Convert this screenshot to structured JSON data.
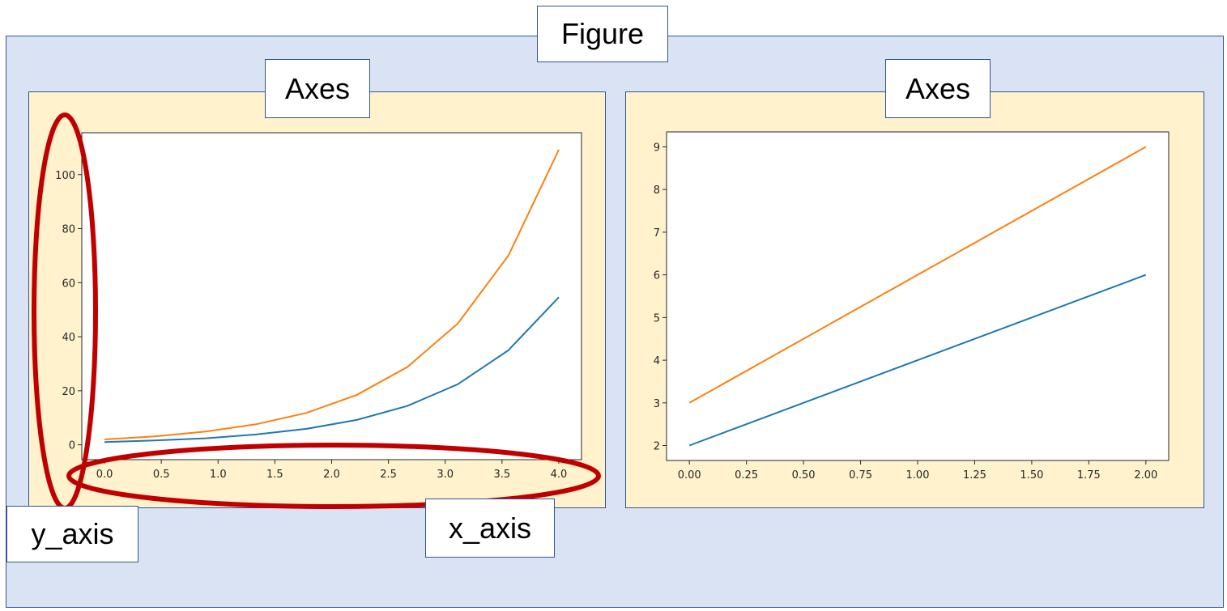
{
  "labels": {
    "figure": "Figure",
    "axes_left": "Axes",
    "axes_right": "Axes",
    "y_axis": "y_axis",
    "x_axis": "x_axis"
  },
  "colors": {
    "figure_fill": "#dae3f3",
    "axes_fill": "#fff2cc",
    "box_border": "#2f5597",
    "highlight": "#c00000",
    "series_blue": "#1f77b4",
    "series_orange": "#ff7f0e"
  },
  "chart_data": [
    {
      "type": "line",
      "xlim": [
        -0.2,
        4.2
      ],
      "ylim": [
        -5.5,
        115.5
      ],
      "xticks": [
        0.0,
        0.5,
        1.0,
        1.5,
        2.0,
        2.5,
        3.0,
        3.5,
        4.0
      ],
      "xtick_labels": [
        "0.0",
        "0.5",
        "1.0",
        "1.5",
        "2.0",
        "2.5",
        "3.0",
        "3.5",
        "4.0"
      ],
      "yticks": [
        0,
        20,
        40,
        60,
        80,
        100
      ],
      "ytick_labels": [
        "0",
        "20",
        "40",
        "60",
        "80",
        "100"
      ],
      "x": [
        0.0,
        0.444,
        0.889,
        1.333,
        1.778,
        2.222,
        2.667,
        3.111,
        3.556,
        4.0
      ],
      "series": [
        {
          "color": "#1f77b4",
          "values": [
            1.0,
            1.6,
            2.4,
            3.8,
            5.9,
            9.2,
            14.4,
            22.4,
            35.0,
            54.6
          ]
        },
        {
          "color": "#ff7f0e",
          "values": [
            2.0,
            3.1,
            4.9,
            7.6,
            11.8,
            18.5,
            28.8,
            44.9,
            70.0,
            109.2
          ]
        }
      ]
    },
    {
      "type": "line",
      "xlim": [
        -0.1,
        2.1
      ],
      "ylim": [
        1.65,
        9.35
      ],
      "xticks": [
        0.0,
        0.25,
        0.5,
        0.75,
        1.0,
        1.25,
        1.5,
        1.75,
        2.0
      ],
      "xtick_labels": [
        "0.00",
        "0.25",
        "0.50",
        "0.75",
        "1.00",
        "1.25",
        "1.50",
        "1.75",
        "2.00"
      ],
      "yticks": [
        2,
        3,
        4,
        5,
        6,
        7,
        8,
        9
      ],
      "ytick_labels": [
        "2",
        "3",
        "4",
        "5",
        "6",
        "7",
        "8",
        "9"
      ],
      "x": [
        0,
        1,
        2
      ],
      "series": [
        {
          "color": "#1f77b4",
          "values": [
            2,
            4,
            6
          ]
        },
        {
          "color": "#ff7f0e",
          "values": [
            3,
            6,
            9
          ]
        }
      ]
    }
  ]
}
